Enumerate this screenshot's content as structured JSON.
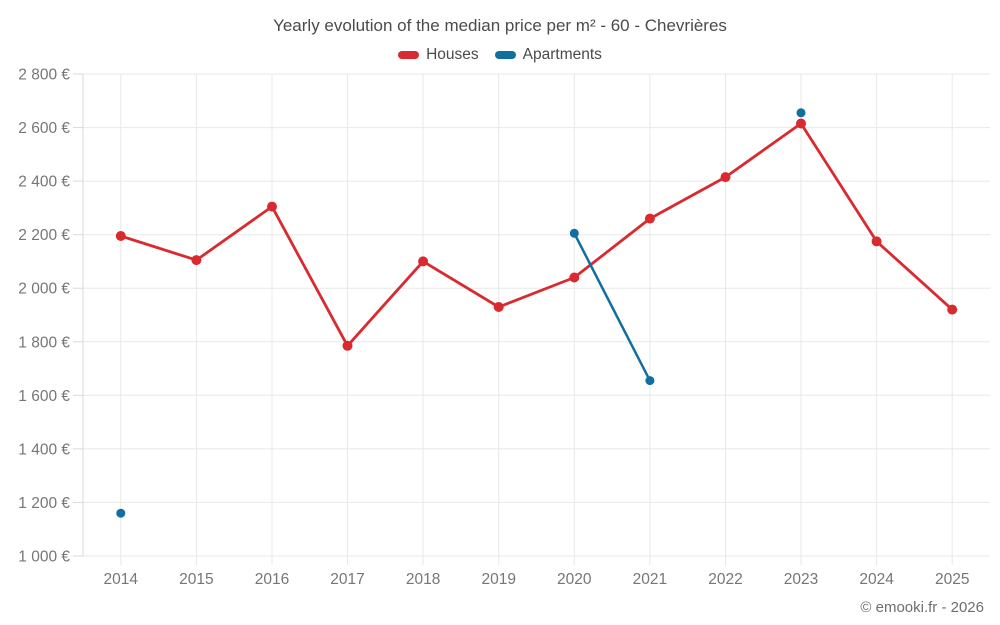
{
  "chart_data": {
    "type": "line",
    "title": "Yearly evolution of the median price per m² - 60 - Chevrières",
    "categories": [
      "2014",
      "2015",
      "2016",
      "2017",
      "2018",
      "2019",
      "2020",
      "2021",
      "2022",
      "2023",
      "2024",
      "2025"
    ],
    "series": [
      {
        "name": "Houses",
        "color": "#d92a30",
        "line_width": 2.8,
        "point_radius": 5,
        "values": [
          2195,
          2105,
          2305,
          1785,
          2100,
          1930,
          2040,
          2260,
          2415,
          2615,
          2175,
          1920
        ]
      },
      {
        "name": "Apartments",
        "color": "#116fa0",
        "line_width": 2.5,
        "point_radius": 4.5,
        "values": [
          1160,
          null,
          null,
          null,
          null,
          null,
          2205,
          1655,
          null,
          2655,
          null,
          null
        ]
      }
    ],
    "ylim": [
      1000,
      2800
    ],
    "yticks": [
      1000,
      1200,
      1400,
      1600,
      1800,
      2000,
      2200,
      2400,
      2600,
      2800
    ],
    "ytick_labels": [
      "1 000 €",
      "1 200 €",
      "1 400 €",
      "1 600 €",
      "1 800 €",
      "2 000 €",
      "2 200 €",
      "2 400 €",
      "2 600 €",
      "2 800 €"
    ],
    "xlabel": "",
    "ylabel": "",
    "grid": true,
    "legend_position": "top",
    "currency": "€"
  },
  "footer": {
    "text": "© emooki.fr - 2026"
  },
  "style": {
    "grid_color": "#e8e8e8",
    "axis_color": "#d9d9d9",
    "axis_text_color": "#767676",
    "axis_font_size": 15.5,
    "point_fill_mode": "solid"
  }
}
